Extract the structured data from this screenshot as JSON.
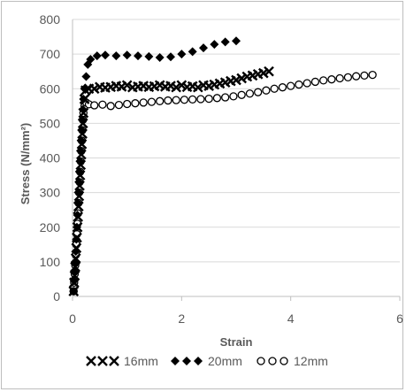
{
  "chart_data": {
    "type": "scatter",
    "title": "",
    "xlabel": "Strain",
    "ylabel": "Stress (N/mm²)",
    "xlim": [
      0,
      6
    ],
    "ylim": [
      0,
      800
    ],
    "xticks": [
      "0",
      "2",
      "4",
      "6"
    ],
    "yticks": [
      "0",
      "100",
      "200",
      "300",
      "400",
      "500",
      "600",
      "700",
      "800"
    ],
    "grid": "horizontal",
    "legend_position": "bottom",
    "series": [
      {
        "name": "16mm",
        "marker": "x",
        "color": "#000000",
        "x": [
          0.02,
          0.03,
          0.04,
          0.05,
          0.06,
          0.07,
          0.08,
          0.09,
          0.1,
          0.11,
          0.12,
          0.13,
          0.14,
          0.15,
          0.16,
          0.17,
          0.18,
          0.19,
          0.2,
          0.22,
          0.24,
          0.3,
          0.4,
          0.5,
          0.6,
          0.7,
          0.8,
          0.9,
          1.0,
          1.1,
          1.2,
          1.3,
          1.4,
          1.5,
          1.6,
          1.7,
          1.8,
          1.9,
          2.0,
          2.1,
          2.2,
          2.3,
          2.4,
          2.5,
          2.6,
          2.7,
          2.8,
          2.9,
          3.0,
          3.1,
          3.2,
          3.3,
          3.4,
          3.5,
          3.6
        ],
        "y": [
          15,
          40,
          60,
          85,
          110,
          140,
          170,
          200,
          230,
          260,
          290,
          320,
          350,
          380,
          410,
          440,
          470,
          500,
          530,
          570,
          595,
          600,
          600,
          605,
          603,
          605,
          608,
          606,
          610,
          604,
          606,
          608,
          605,
          607,
          610,
          606,
          608,
          604,
          610,
          605,
          607,
          604,
          610,
          608,
          612,
          615,
          618,
          622,
          625,
          630,
          635,
          638,
          642,
          645,
          650
        ]
      },
      {
        "name": "20mm",
        "marker": "diamond",
        "color": "#000000",
        "x": [
          0.02,
          0.03,
          0.04,
          0.05,
          0.06,
          0.07,
          0.08,
          0.09,
          0.1,
          0.11,
          0.12,
          0.13,
          0.14,
          0.15,
          0.16,
          0.17,
          0.18,
          0.19,
          0.2,
          0.22,
          0.25,
          0.28,
          0.33,
          0.45,
          0.6,
          0.8,
          1.0,
          1.2,
          1.4,
          1.6,
          1.8,
          2.0,
          2.2,
          2.4,
          2.6,
          2.8,
          3.0
        ],
        "y": [
          15,
          45,
          70,
          100,
          130,
          165,
          200,
          235,
          270,
          300,
          330,
          360,
          390,
          420,
          450,
          480,
          510,
          540,
          570,
          600,
          635,
          670,
          685,
          695,
          697,
          695,
          697,
          695,
          693,
          690,
          692,
          700,
          707,
          718,
          728,
          735,
          738
        ]
      },
      {
        "name": "12mm",
        "marker": "circle",
        "color": "#000000",
        "x": [
          0.02,
          0.03,
          0.04,
          0.05,
          0.06,
          0.07,
          0.08,
          0.09,
          0.1,
          0.11,
          0.12,
          0.13,
          0.14,
          0.15,
          0.16,
          0.17,
          0.18,
          0.19,
          0.2,
          0.22,
          0.25,
          0.3,
          0.4,
          0.55,
          0.7,
          0.85,
          1.0,
          1.15,
          1.3,
          1.45,
          1.6,
          1.75,
          1.9,
          2.05,
          2.2,
          2.35,
          2.5,
          2.65,
          2.8,
          2.95,
          3.1,
          3.25,
          3.4,
          3.55,
          3.7,
          3.85,
          4.0,
          4.15,
          4.3,
          4.45,
          4.6,
          4.75,
          4.9,
          5.05,
          5.2,
          5.35,
          5.5
        ],
        "y": [
          15,
          40,
          65,
          90,
          120,
          150,
          180,
          210,
          240,
          270,
          300,
          330,
          360,
          390,
          420,
          450,
          480,
          510,
          530,
          550,
          560,
          555,
          552,
          554,
          550,
          553,
          556,
          558,
          560,
          562,
          564,
          566,
          567,
          568,
          569,
          570,
          571,
          573,
          575,
          578,
          582,
          586,
          590,
          595,
          600,
          604,
          608,
          612,
          616,
          620,
          624,
          627,
          630,
          633,
          636,
          638,
          640
        ]
      }
    ]
  }
}
